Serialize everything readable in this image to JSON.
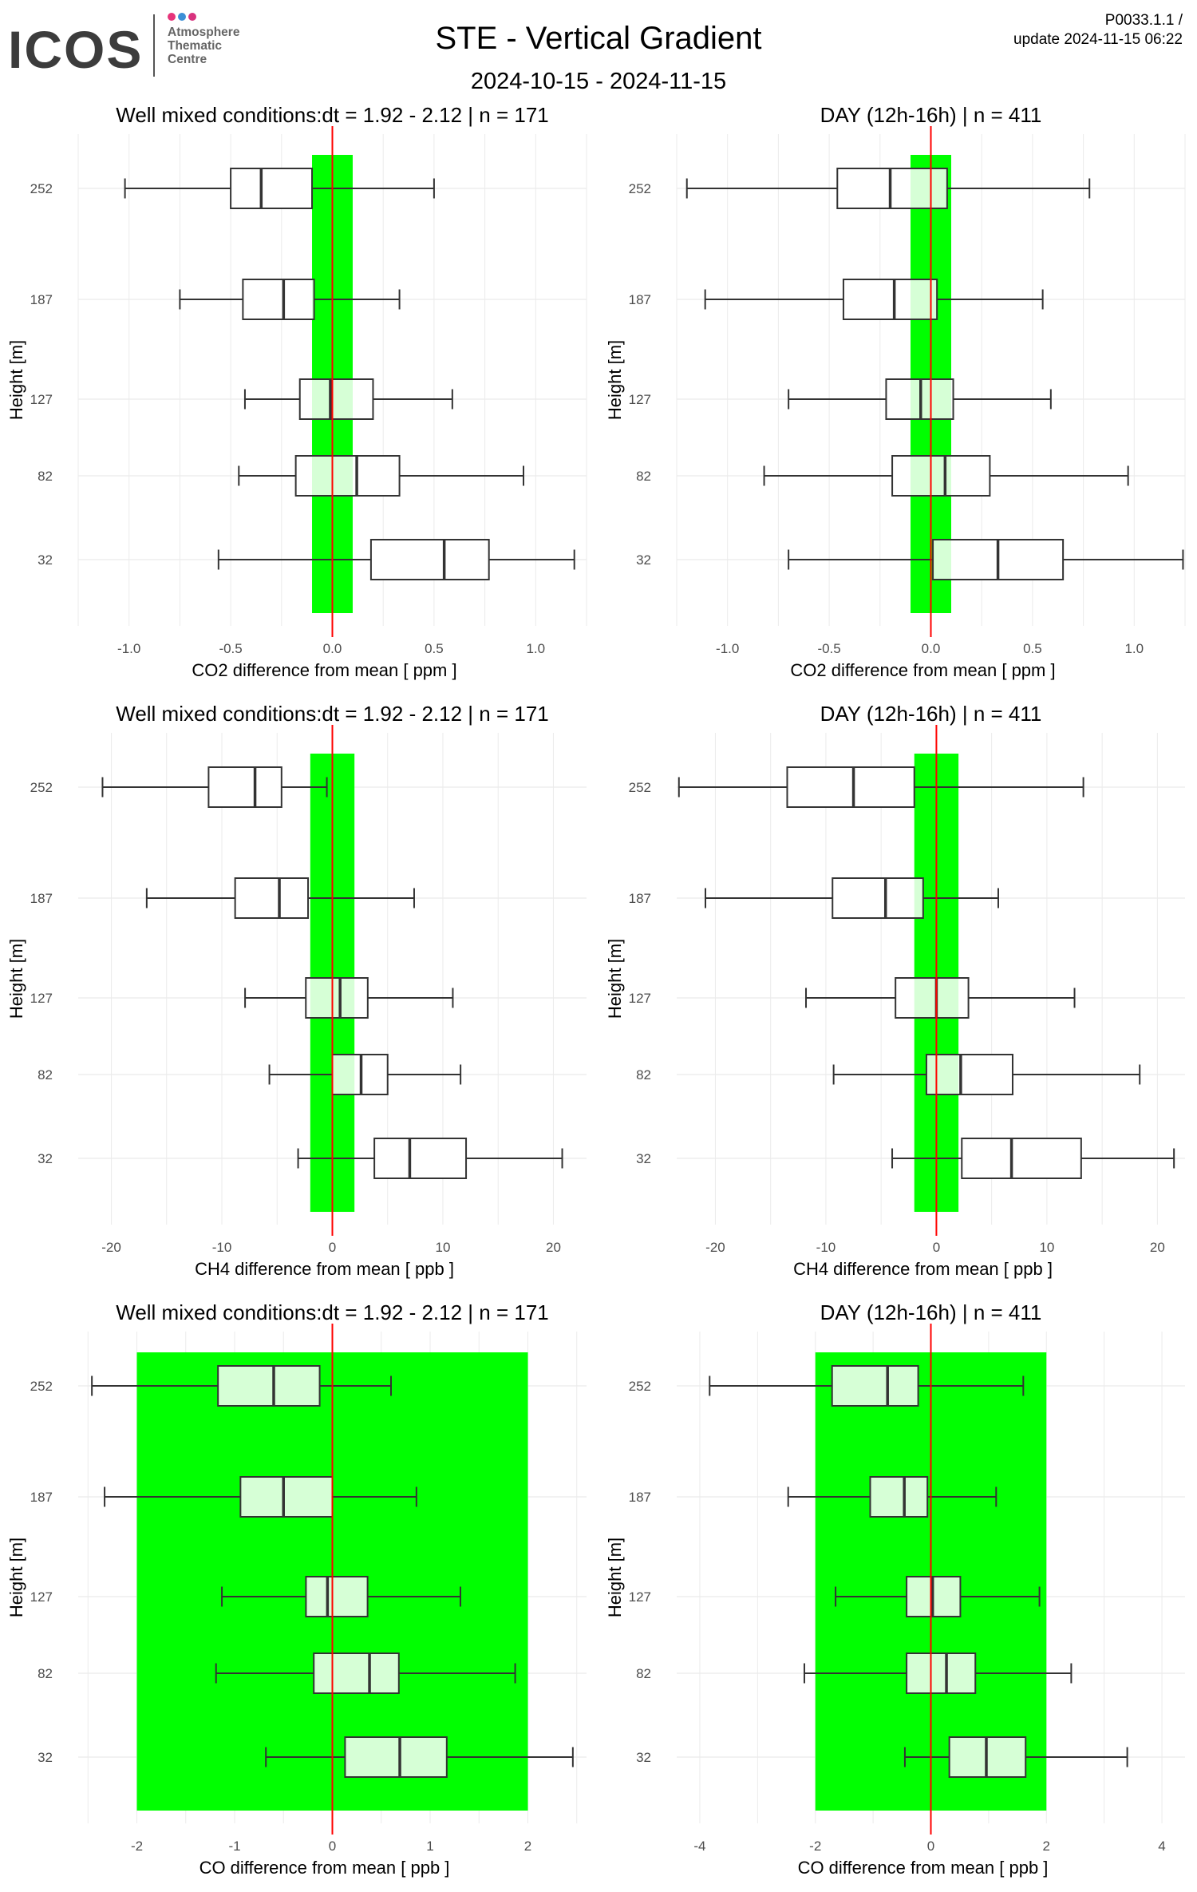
{
  "header": {
    "logo_text": "ICOS",
    "logo_subtitle_lines": [
      "Atmosphere",
      "Thematic",
      "Centre"
    ],
    "logo_dot_colors": [
      "#e6347a",
      "#3c8fd6",
      "#d8327e"
    ],
    "title": "STE - Vertical Gradient",
    "date_range": "2024-10-15 - 2024-11-15",
    "version": "P0033.1.1 /",
    "update": "update  2024-11-15 06:22"
  },
  "colors": {
    "band": "#00ff00",
    "box_fill_inside": "#d6ffd6",
    "box_fill_outside": "#ffffff",
    "zero_line": "#ff0000",
    "grid": "#ebebeb",
    "stroke": "#333333"
  },
  "chart_data": [
    {
      "type": "boxplot",
      "title": "Well mixed conditions:dt = 1.92 - 2.12 | n = 171",
      "xlabel": "CO2  difference from mean [ ppm ]",
      "ylabel": "Height [m]",
      "xlim": [
        -1.25,
        1.25
      ],
      "xticks": [
        -1.0,
        -0.5,
        0.0,
        0.5,
        1.0
      ],
      "xtick_labels": [
        "-1.0",
        "-0.5",
        "0.0",
        "0.5",
        "1.0"
      ],
      "band": [
        -0.1,
        0.1
      ],
      "heights": [
        "252",
        "187",
        "127",
        "82",
        "32"
      ],
      "boxes": [
        {
          "height": "252",
          "whisker_low": -1.02,
          "q1": -0.5,
          "median": -0.35,
          "q3": -0.1,
          "whisker_high": 0.5
        },
        {
          "height": "187",
          "whisker_low": -0.75,
          "q1": -0.44,
          "median": -0.24,
          "q3": -0.09,
          "whisker_high": 0.33
        },
        {
          "height": "127",
          "whisker_low": -0.43,
          "q1": -0.16,
          "median": -0.01,
          "q3": 0.2,
          "whisker_high": 0.59
        },
        {
          "height": "82",
          "whisker_low": -0.46,
          "q1": -0.18,
          "median": 0.12,
          "q3": 0.33,
          "whisker_high": 0.94
        },
        {
          "height": "32",
          "whisker_low": -0.56,
          "q1": 0.19,
          "median": 0.55,
          "q3": 0.77,
          "whisker_high": 1.19
        }
      ]
    },
    {
      "type": "boxplot",
      "title": "DAY (12h-16h) | n = 411",
      "xlabel": "CO2  difference from mean [ ppm ]",
      "ylabel": "Height [m]",
      "xlim": [
        -1.25,
        1.25
      ],
      "xticks": [
        -1.0,
        -0.5,
        0.0,
        0.5,
        1.0
      ],
      "xtick_labels": [
        "-1.0",
        "-0.5",
        "0.0",
        "0.5",
        "1.0"
      ],
      "band": [
        -0.1,
        0.1
      ],
      "heights": [
        "252",
        "187",
        "127",
        "82",
        "32"
      ],
      "boxes": [
        {
          "height": "252",
          "whisker_low": -1.2,
          "q1": -0.46,
          "median": -0.2,
          "q3": 0.08,
          "whisker_high": 0.78
        },
        {
          "height": "187",
          "whisker_low": -1.11,
          "q1": -0.43,
          "median": -0.18,
          "q3": 0.03,
          "whisker_high": 0.55
        },
        {
          "height": "127",
          "whisker_low": -0.7,
          "q1": -0.22,
          "median": -0.05,
          "q3": 0.11,
          "whisker_high": 0.59
        },
        {
          "height": "82",
          "whisker_low": -0.82,
          "q1": -0.19,
          "median": 0.07,
          "q3": 0.29,
          "whisker_high": 0.97
        },
        {
          "height": "32",
          "whisker_low": -0.7,
          "q1": 0.01,
          "median": 0.33,
          "q3": 0.65,
          "whisker_high": 1.24
        }
      ]
    },
    {
      "type": "boxplot",
      "title": "Well mixed conditions:dt = 1.92 - 2.12 | n = 171",
      "xlabel": "CH4  difference from mean [ ppb ]",
      "ylabel": "Height [m]",
      "xlim": [
        -23,
        23
      ],
      "xticks": [
        -20,
        -10,
        0,
        10,
        20
      ],
      "xtick_labels": [
        "-20",
        "-10",
        "0",
        "10",
        "20"
      ],
      "band": [
        -2,
        2
      ],
      "heights": [
        "252",
        "187",
        "127",
        "82",
        "32"
      ],
      "boxes": [
        {
          "height": "252",
          "whisker_low": -20.8,
          "q1": -11.2,
          "median": -7,
          "q3": -4.6,
          "whisker_high": -0.5
        },
        {
          "height": "187",
          "whisker_low": -16.8,
          "q1": -8.8,
          "median": -4.8,
          "q3": -2.2,
          "whisker_high": 7.4
        },
        {
          "height": "127",
          "whisker_low": -7.9,
          "q1": -2.4,
          "median": 0.7,
          "q3": 3.2,
          "whisker_high": 10.9
        },
        {
          "height": "82",
          "whisker_low": -5.7,
          "q1": 0,
          "median": 2.6,
          "q3": 5,
          "whisker_high": 11.6
        },
        {
          "height": "32",
          "whisker_low": -3.1,
          "q1": 3.8,
          "median": 7,
          "q3": 12.1,
          "whisker_high": 20.8
        }
      ]
    },
    {
      "type": "boxplot",
      "title": "DAY (12h-16h) | n = 411",
      "xlabel": "CH4  difference from mean [ ppb ]",
      "ylabel": "Height [m]",
      "xlim": [
        -23.5,
        22.5
      ],
      "xticks": [
        -20,
        -10,
        0,
        10,
        20
      ],
      "xtick_labels": [
        "-20",
        "-10",
        "0",
        "10",
        "20"
      ],
      "band": [
        -2,
        2
      ],
      "heights": [
        "252",
        "187",
        "127",
        "82",
        "32"
      ],
      "boxes": [
        {
          "height": "252",
          "whisker_low": -23.3,
          "q1": -13.5,
          "median": -7.5,
          "q3": -2,
          "whisker_high": 13.3
        },
        {
          "height": "187",
          "whisker_low": -20.9,
          "q1": -9.4,
          "median": -4.6,
          "q3": -1.2,
          "whisker_high": 5.6
        },
        {
          "height": "127",
          "whisker_low": -11.8,
          "q1": -3.7,
          "median": 0,
          "q3": 2.9,
          "whisker_high": 12.5
        },
        {
          "height": "82",
          "whisker_low": -9.3,
          "q1": -0.9,
          "median": 2.2,
          "q3": 6.9,
          "whisker_high": 18.4
        },
        {
          "height": "32",
          "whisker_low": -4,
          "q1": 2.3,
          "median": 6.8,
          "q3": 13.1,
          "whisker_high": 21.5
        }
      ]
    },
    {
      "type": "boxplot",
      "title": "Well mixed conditions:dt = 1.92 - 2.12 | n = 171",
      "xlabel": "CO  difference from mean [ ppb ]",
      "ylabel": "Height [m]",
      "xlim": [
        -2.6,
        2.6
      ],
      "xticks": [
        -2,
        -1,
        0,
        1,
        2
      ],
      "xtick_labels": [
        "-2",
        "-1",
        "0",
        "1",
        "2"
      ],
      "band": [
        -2,
        2
      ],
      "heights": [
        "252",
        "187",
        "127",
        "82",
        "32"
      ],
      "boxes": [
        {
          "height": "252",
          "whisker_low": -2.46,
          "q1": -1.17,
          "median": -0.6,
          "q3": -0.13,
          "whisker_high": 0.6
        },
        {
          "height": "187",
          "whisker_low": -2.33,
          "q1": -0.94,
          "median": -0.5,
          "q3": 0,
          "whisker_high": 0.86
        },
        {
          "height": "127",
          "whisker_low": -1.13,
          "q1": -0.27,
          "median": -0.05,
          "q3": 0.36,
          "whisker_high": 1.31
        },
        {
          "height": "82",
          "whisker_low": -1.19,
          "q1": -0.19,
          "median": 0.38,
          "q3": 0.68,
          "whisker_high": 1.87
        },
        {
          "height": "32",
          "whisker_low": -0.68,
          "q1": 0.13,
          "median": 0.69,
          "q3": 1.17,
          "whisker_high": 2.46
        }
      ]
    },
    {
      "type": "boxplot",
      "title": "DAY (12h-16h) | n = 411",
      "xlabel": "CO  difference from mean [ ppb ]",
      "ylabel": "Height [m]",
      "xlim": [
        -4.4,
        4.4
      ],
      "xticks": [
        -4,
        -2,
        0,
        2,
        4
      ],
      "xtick_labels": [
        "-4",
        "-2",
        "0",
        "2",
        "4"
      ],
      "band": [
        -2,
        2
      ],
      "heights": [
        "252",
        "187",
        "127",
        "82",
        "32"
      ],
      "boxes": [
        {
          "height": "252",
          "whisker_low": -3.83,
          "q1": -1.71,
          "median": -0.75,
          "q3": -0.22,
          "whisker_high": 1.6
        },
        {
          "height": "187",
          "whisker_low": -2.47,
          "q1": -1.05,
          "median": -0.46,
          "q3": -0.06,
          "whisker_high": 1.13
        },
        {
          "height": "127",
          "whisker_low": -1.65,
          "q1": -0.42,
          "median": 0.03,
          "q3": 0.51,
          "whisker_high": 1.88
        },
        {
          "height": "82",
          "whisker_low": -2.19,
          "q1": -0.42,
          "median": 0.27,
          "q3": 0.77,
          "whisker_high": 2.43
        },
        {
          "height": "32",
          "whisker_low": -0.45,
          "q1": 0.32,
          "median": 0.96,
          "q3": 1.64,
          "whisker_high": 3.4
        }
      ]
    }
  ]
}
